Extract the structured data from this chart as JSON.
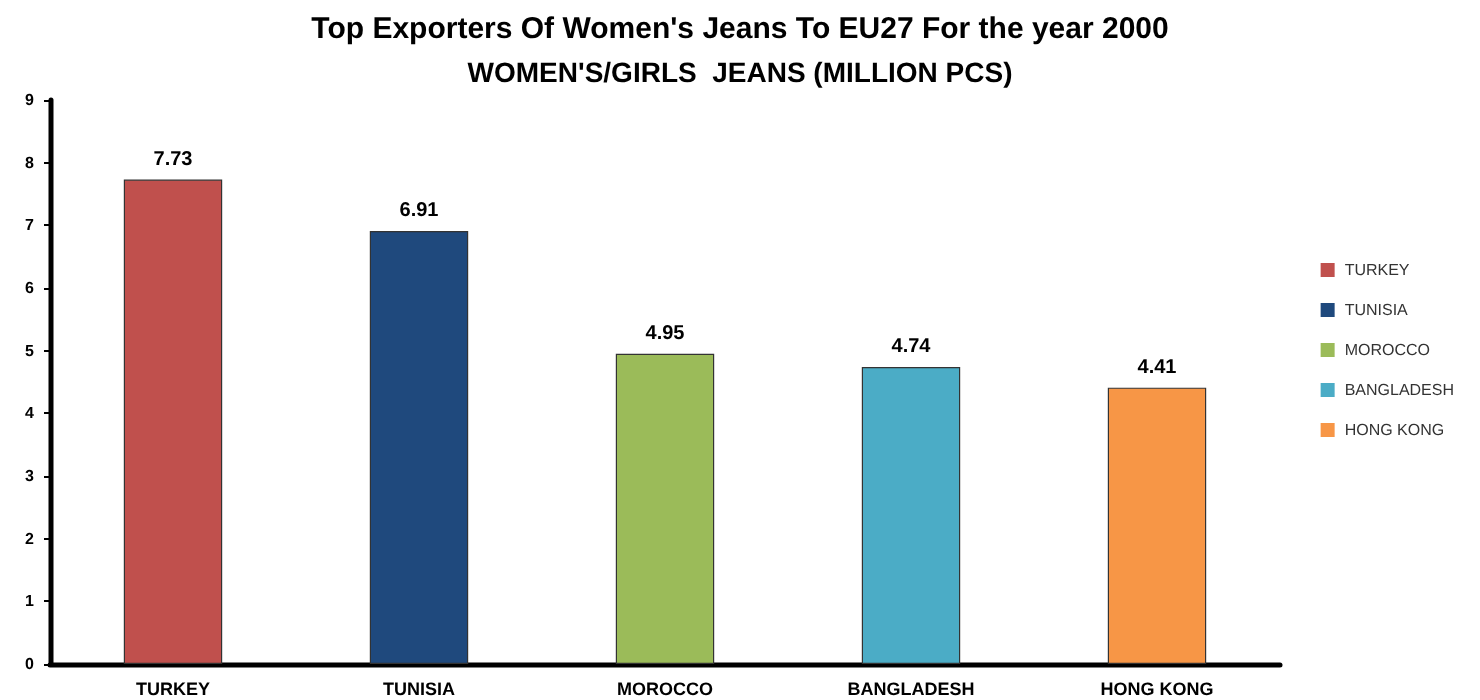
{
  "chart_data": {
    "type": "bar",
    "title": "Top Exporters Of Women's Jeans To EU27 For the year 2000",
    "subtitle": "WOMEN'S/GIRLS  JEANS (MILLION PCS)",
    "categories": [
      "TURKEY",
      "TUNISIA",
      "MOROCCO",
      "BANGLADESH",
      "HONG KONG"
    ],
    "series": [
      {
        "name": "TURKEY",
        "color": "#c0504d",
        "values": [
          7.73,
          null,
          null,
          null,
          null
        ]
      },
      {
        "name": "TUNISIA",
        "color": "#1f497d",
        "values": [
          null,
          6.91,
          null,
          null,
          null
        ]
      },
      {
        "name": "MOROCCO",
        "color": "#9bbb59",
        "values": [
          null,
          null,
          4.95,
          null,
          null
        ]
      },
      {
        "name": "BANGLADESH",
        "color": "#4bacc6",
        "values": [
          null,
          null,
          null,
          4.74,
          null
        ]
      },
      {
        "name": "HONG KONG",
        "color": "#f79646",
        "values": [
          null,
          null,
          null,
          null,
          4.41
        ]
      }
    ],
    "ylim": [
      0,
      9
    ],
    "yticks": [
      0,
      1,
      2,
      3,
      4,
      5,
      6,
      7,
      8,
      9
    ],
    "data_labels": true,
    "legend": "right",
    "grid": false
  }
}
